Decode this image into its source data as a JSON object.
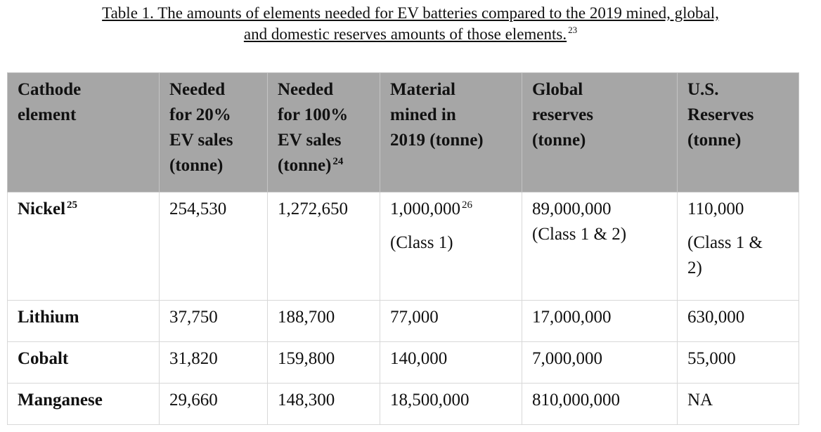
{
  "caption": {
    "line1": "Table 1.  The amounts of elements needed for EV batteries compared to the 2019 mined, global,",
    "line2": "and domestic reserves amounts of those elements.",
    "footnote": "23"
  },
  "headers": [
    {
      "lines": [
        "Cathode",
        "element"
      ]
    },
    {
      "lines": [
        "Needed",
        "for 20%",
        "EV sales",
        "(tonne)"
      ]
    },
    {
      "lines": [
        "Needed",
        "for 100%",
        "EV sales",
        "(tonne)"
      ],
      "footnote": "24"
    },
    {
      "lines": [
        "Material",
        "mined in",
        "2019 (tonne)"
      ]
    },
    {
      "lines": [
        "Global",
        "reserves",
        "(tonne)"
      ]
    },
    {
      "lines": [
        "U.S.",
        "Reserves",
        "(tonne)"
      ]
    }
  ],
  "nickel": {
    "element": "Nickel",
    "element_fn": "25",
    "need20": "254,530",
    "need100": "1,272,650",
    "mined": "1,000,000",
    "mined_fn": "26",
    "mined_note": "(Class 1)",
    "global": "89,000,000",
    "global_note": "(Class 1 & 2)",
    "us": "110,000",
    "us_note": "(Class 1 & 2)"
  },
  "rows": [
    {
      "element": "Lithium",
      "need20": "37,750",
      "need100": "188,700",
      "mined": "77,000",
      "global": "17,000,000",
      "us": "630,000"
    },
    {
      "element": "Cobalt",
      "need20": "31,820",
      "need100": "159,800",
      "mined": "140,000",
      "global": "7,000,000",
      "us": "55,000"
    },
    {
      "element": "Manganese",
      "need20": "29,660",
      "need100": "148,300",
      "mined": "18,500,000",
      "global": "810,000,000",
      "us": "NA"
    }
  ]
}
